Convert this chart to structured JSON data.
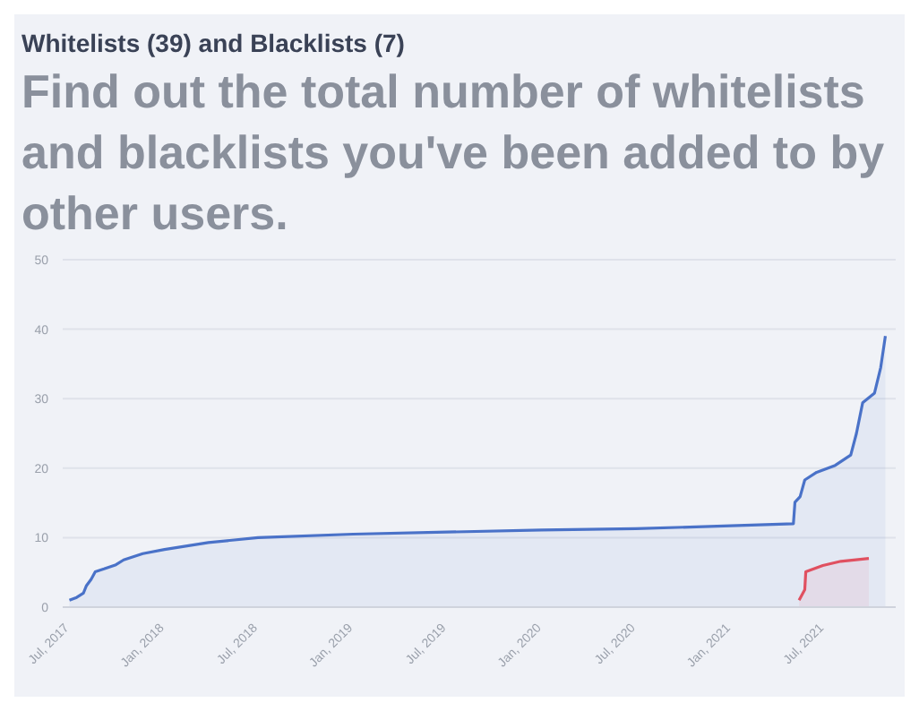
{
  "chart_data": {
    "type": "area",
    "title": "Whitelists (39) and Blacklists (7)",
    "subtitle": "Find out the total number of whitelists and blacklists you've been added to by other users.",
    "series": [
      {
        "color": "#4a72c8",
        "x": [
          "2017-07-01",
          "2017-07-15",
          "2017-07-28",
          "2017-08-03",
          "2017-08-12",
          "2017-08-20",
          "2017-09-06",
          "2017-09-29",
          "2017-10-14",
          "2017-11-20",
          "2018-01-01",
          "2018-03-27",
          "2018-07-01",
          "2019-01-01",
          "2019-07-01",
          "2020-01-01",
          "2020-07-01",
          "2021-01-01",
          "2021-05-02",
          "2021-05-05",
          "2021-05-15",
          "2021-05-24",
          "2021-06-16",
          "2021-07-22",
          "2021-08-21",
          "2021-09-01",
          "2021-09-13",
          "2021-10-06",
          "2021-10-18",
          "2021-10-27"
        ],
        "values": [
          1.0,
          1.4,
          2.0,
          3.1,
          4.0,
          5.1,
          5.5,
          6.1,
          6.8,
          7.7,
          8.3,
          9.3,
          10.0,
          10.5,
          10.8,
          11.1,
          11.3,
          11.7,
          12.0,
          15.1,
          15.9,
          18.3,
          19.4,
          20.4,
          21.9,
          25.0,
          29.4,
          30.8,
          34.5,
          39
        ]
      },
      {
        "color": "#e05060",
        "x": [
          "2021-05-13",
          "2021-05-24",
          "2021-05-26",
          "2021-06-28",
          "2021-08-02",
          "2021-09-25"
        ],
        "values": [
          1.0,
          2.5,
          5.1,
          6.0,
          6.6,
          7.0
        ]
      }
    ],
    "xlim": [
      "2017-06-18",
      "2021-11-16"
    ],
    "xticks": [
      {
        "value": "2017-07-01",
        "label": "Jul, 2017"
      },
      {
        "value": "2018-01-01",
        "label": "Jan, 2018"
      },
      {
        "value": "2018-07-01",
        "label": "Jul, 2018"
      },
      {
        "value": "2019-01-01",
        "label": "Jan, 2019"
      },
      {
        "value": "2019-07-01",
        "label": "Jul, 2019"
      },
      {
        "value": "2020-01-01",
        "label": "Jan, 2020"
      },
      {
        "value": "2020-07-01",
        "label": "Jul, 2020"
      },
      {
        "value": "2021-01-01",
        "label": "Jan, 2021"
      },
      {
        "value": "2021-07-01",
        "label": "Jul, 2021"
      }
    ],
    "ylim": [
      0,
      50
    ],
    "yticks": [
      0,
      10,
      20,
      30,
      40,
      50
    ],
    "grid": "y"
  }
}
